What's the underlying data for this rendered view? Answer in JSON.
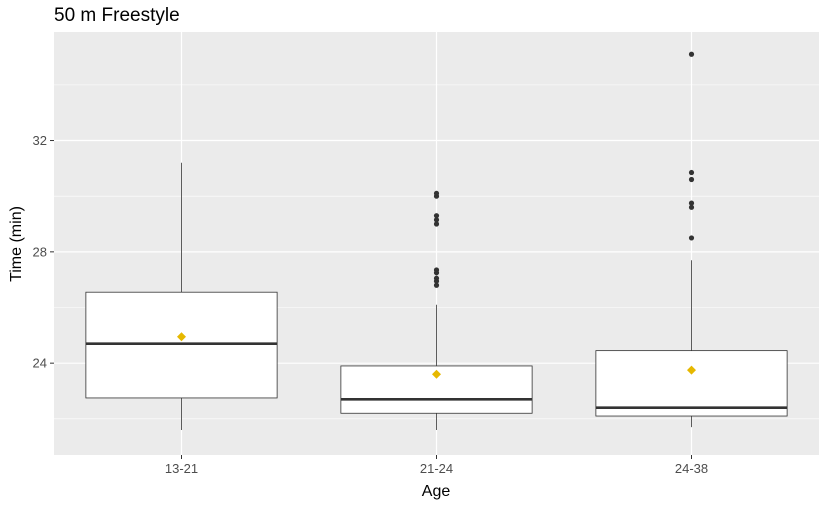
{
  "chart_data": {
    "type": "boxplot",
    "title": "50 m Freestyle",
    "xlabel": "Age",
    "ylabel": "Time (min)",
    "ylim": [
      20.7,
      35.9
    ],
    "yticks": [
      24,
      28,
      32
    ],
    "grid": true,
    "categories": [
      "13-21",
      "21-24",
      "24-38"
    ],
    "boxes": [
      {
        "category": "13-21",
        "whisker_low": 21.6,
        "q1": 22.75,
        "median": 24.7,
        "q3": 26.55,
        "whisker_high": 31.2,
        "mean": 24.95,
        "outliers": []
      },
      {
        "category": "21-24",
        "whisker_low": 21.6,
        "q1": 22.2,
        "median": 22.7,
        "q3": 23.9,
        "whisker_high": 26.1,
        "mean": 23.6,
        "outliers": [
          26.8,
          26.95,
          27.05,
          27.25,
          27.35,
          29.0,
          29.15,
          29.3,
          30.0,
          30.1
        ]
      },
      {
        "category": "24-38",
        "whisker_low": 21.7,
        "q1": 22.1,
        "median": 22.4,
        "q3": 24.45,
        "whisker_high": 27.7,
        "mean": 23.75,
        "outliers": [
          28.5,
          29.6,
          29.75,
          30.6,
          30.85,
          35.1
        ]
      }
    ],
    "colors": {
      "panel_background": "#ebebeb",
      "grid": "#ffffff",
      "box_fill": "#ffffff",
      "box_line": "#333333",
      "outlier": "#333333",
      "mean_marker": "#e6b800"
    }
  }
}
